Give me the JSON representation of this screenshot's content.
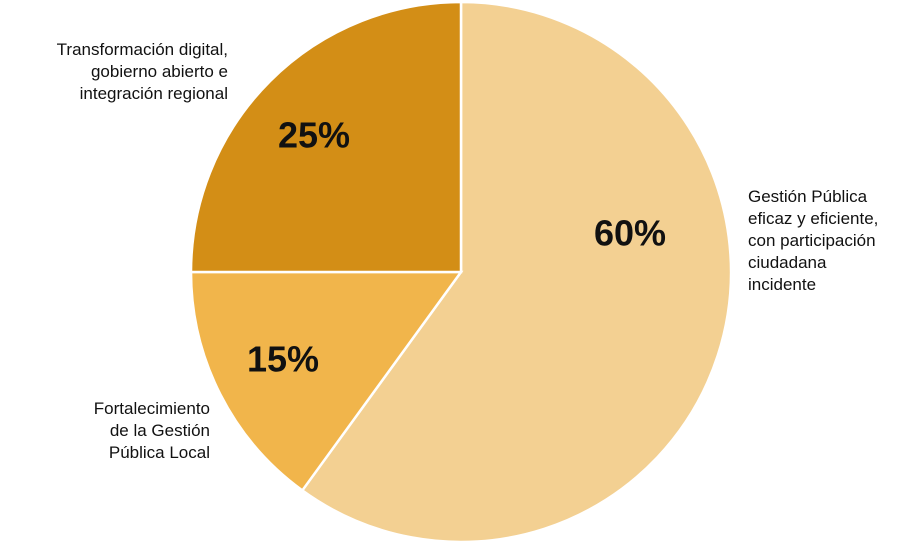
{
  "chart_data": {
    "type": "pie",
    "slices": [
      {
        "label": [
          "Gestión Pública",
          "eficaz y eficiente,",
          "con participación",
          "ciudadana",
          "incidente"
        ],
        "value": 60,
        "value_label": "60%",
        "color": "#F3D092"
      },
      {
        "label": [
          "Fortalecimiento",
          "de la Gestión",
          "Pública Local"
        ],
        "value": 15,
        "value_label": "15%",
        "color": "#F1B54B"
      },
      {
        "label": [
          "Transformación digital,",
          "gobierno abierto e",
          "integración regional"
        ],
        "value": 25,
        "value_label": "25%",
        "color": "#D38E16"
      }
    ],
    "start_angle": "top",
    "direction": "clockwise",
    "legend": "none"
  }
}
